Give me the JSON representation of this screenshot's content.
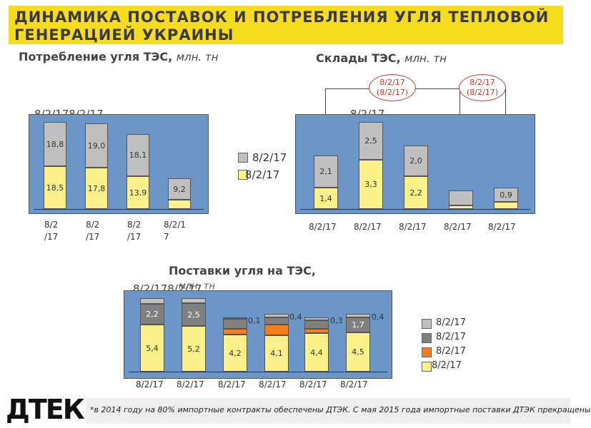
{
  "header": {
    "title": "ДИНАМИКА ПОСТАВОК И ПОТРЕБЛЕНИЯ УГЛЯ ТЕПЛОВОЙ ГЕНЕРАЦИЕЙ УКРАИНЫ"
  },
  "colors": {
    "banner": "#f6dc1e",
    "panel": "#6d96c8",
    "gray": "#c0c0c0",
    "dark_gray": "#808080",
    "orange": "#f47e20",
    "yellow": "#fbf089"
  },
  "consumption": {
    "title": "Потребление угля ТЭС,",
    "unit": "млн. тн",
    "overlay_label": "8/2/178/2/17",
    "legend": [
      "8/2/17",
      "8/2/17"
    ],
    "chart_data": {
      "type": "bar",
      "categories": [
        "8/2 /17",
        "8/2 /17",
        "8/2 /17",
        "8/2/1 7"
      ],
      "series": [
        {
          "values": [
            18.5,
            17.8,
            13.9,
            3.0
          ]
        },
        {
          "values": [
            18.8,
            19.0,
            18.1,
            9.2
          ]
        }
      ],
      "data_labels": {
        "bottom": [
          "18,5",
          "17,8",
          "13,9",
          ""
        ],
        "top": [
          "18,8",
          "19,0",
          "18,1",
          "9,2"
        ]
      }
    }
  },
  "stock": {
    "title": "Склады ТЭС,",
    "unit": "млн. тн",
    "overlay_label": "8/2/17",
    "bubbles": [
      {
        "line1": "8/2/17",
        "line2": "(8/2/17)"
      },
      {
        "line1": "8/2/17",
        "line2": "(8/2/17)"
      }
    ],
    "chart_data": {
      "type": "bar",
      "categories": [
        "8/2/17",
        "8/2/17",
        "8/2/17",
        "8/2/17",
        "8/2/17"
      ],
      "series": [
        {
          "values": [
            1.4,
            3.3,
            2.2,
            0.2,
            0.5
          ]
        },
        {
          "values": [
            2.1,
            2.5,
            2.0,
            1.0,
            0.9
          ]
        }
      ],
      "data_labels": {
        "bottom": [
          "1,4",
          "3,3",
          "2,2",
          "",
          ""
        ],
        "top": [
          "2,1",
          "2,5",
          "2,0",
          "",
          "0,9"
        ]
      }
    }
  },
  "deliveries": {
    "title": "Поставки угля на ТЭС,",
    "overlay_label": "8/2/178/2/17",
    "overlay_unit": "млн. тн",
    "legend": [
      "8/2/17",
      "8/2/17",
      "8/2/17",
      "8/2/17"
    ],
    "chart_data": {
      "type": "bar",
      "categories": [
        "8/2/17",
        "8/2/17",
        "8/2/17",
        "8/2/17",
        "8/2/17",
        "8/2/17"
      ],
      "series": [
        {
          "values": [
            5.4,
            5.2,
            4.2,
            4.1,
            4.4,
            4.5
          ]
        },
        {
          "values": [
            0,
            0,
            0.6,
            1.2,
            0.5,
            0
          ]
        },
        {
          "values": [
            2.2,
            2.5,
            1.3,
            0.8,
            1.0,
            1.7
          ]
        },
        {
          "values": [
            0.6,
            0.5,
            0.1,
            0.4,
            0.3,
            0.4
          ]
        }
      ],
      "data_labels": {
        "yellow": [
          "5,4",
          "5,2",
          "4,2",
          "4,1",
          "4,4",
          "4,5"
        ],
        "dark": [
          "2,2",
          "2,5",
          "",
          "",
          "",
          "1,7"
        ],
        "outside": [
          "",
          "",
          "0,1",
          "0,4",
          "0,3",
          "0,4"
        ]
      }
    }
  },
  "footer": {
    "text": "*в 2014 году на 80% импортные контракты обеспечены ДТЭК. С мая 2015 года импортные поставки ДТЭК прекращены",
    "logo": "ДТЕК"
  }
}
